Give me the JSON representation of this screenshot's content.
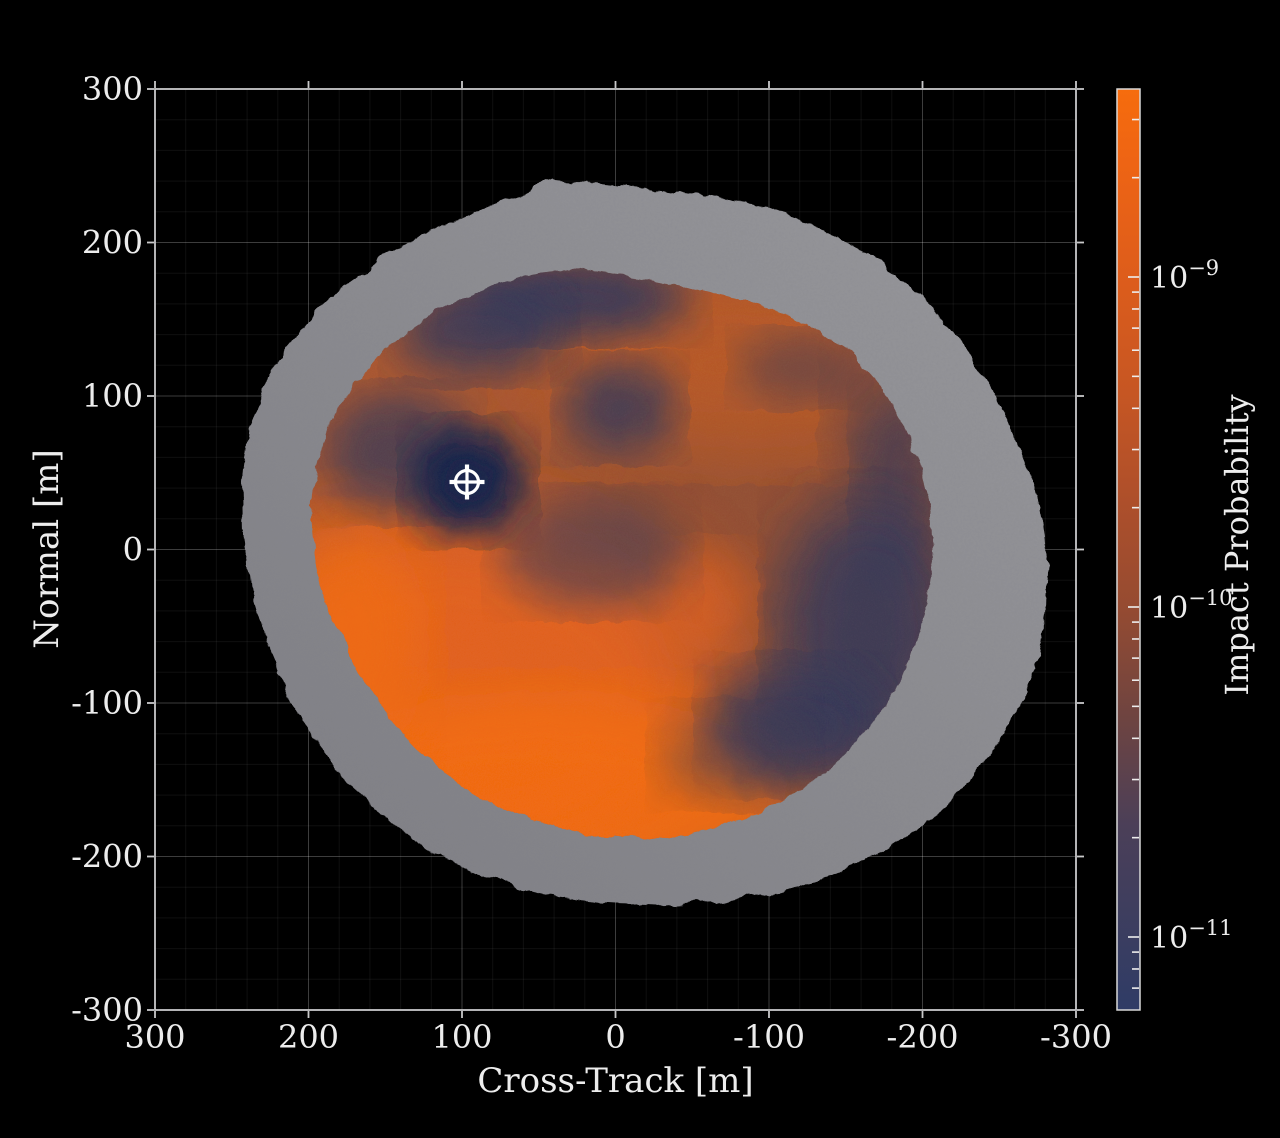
{
  "figure": {
    "background": "#000000",
    "description": "Asteroid surface impact-probability heatmap over a gray asteroid mesh silhouette"
  },
  "axes": {
    "x": {
      "label": "Cross-Track [m]",
      "ticks": [
        "300",
        "200",
        "100",
        "0",
        "-100",
        "-200",
        "-300"
      ]
    },
    "y": {
      "label": "Normal [m]",
      "ticks": [
        "300",
        "200",
        "100",
        "0",
        "-100",
        "-200",
        "-300"
      ]
    }
  },
  "colorbar": {
    "label": "Impact Probability",
    "scale": "log",
    "ticks": [
      {
        "mantissa": "10",
        "exponent": "−9"
      },
      {
        "mantissa": "10",
        "exponent": "−10"
      },
      {
        "mantissa": "10",
        "exponent": "−11"
      }
    ]
  },
  "marker": {
    "symbol": "circled-crosshair",
    "cross_track_m": 97,
    "normal_m": 44
  },
  "colors": {
    "background": "#000000",
    "axis": "#c9c9ca",
    "text": "#ededed",
    "grid-major": "rgba(255,255,255,0.24)",
    "grid-minor": "rgba(255,255,255,0.06)",
    "rock-light": "#9a9a9e",
    "rock-dark": "#7d7d83",
    "heat-base": "#a7542e",
    "heat-orange": "#e4601b",
    "heat-hot": "#f26a10",
    "heat-dim": "#c05a24",
    "heat-brown": "#7c4736",
    "heat-navy": "#2d3558",
    "heat-deep": "#15204a",
    "marker": "#ffffff",
    "cb0": "#f66c0d",
    "cb1": "#ee6414",
    "cb2": "#de5d1b",
    "cb3": "#c65623",
    "cb4": "#ad4f2b",
    "cb5": "#964b31",
    "cb6": "#6f4440",
    "cb7": "#4b3f58",
    "cb8": "#2f3c66"
  },
  "chart_data": {
    "type": "heatmap",
    "title": "",
    "xlabel": "Cross-Track [m]",
    "ylabel": "Normal [m]",
    "xlim": [
      300,
      -300
    ],
    "ylim": [
      -300,
      300
    ],
    "x_ticks": [
      300,
      200,
      100,
      0,
      -100,
      -200,
      -300
    ],
    "y_ticks": [
      300,
      200,
      100,
      0,
      -100,
      -200,
      -300
    ],
    "grid": true,
    "minor_grid_step_m": 20,
    "colorbar": {
      "label": "Impact Probability",
      "scale": "log",
      "tick_values": [
        1e-09,
        1e-10,
        1e-11
      ],
      "approx_range": [
        6e-12,
        4e-09
      ],
      "colors_high_to_low": [
        "#f66c0d",
        "#c65623",
        "#6f4440",
        "#2f3c66"
      ]
    },
    "body": {
      "description": "rocky gray asteroid rim (triangular mesh) seen face-on; interior surface colored by impact probability",
      "extent_cross_track_m": [
        255,
        -285
      ],
      "extent_normal_m": [
        -232,
        245
      ]
    },
    "surface_regions": [
      {
        "location": "south / southwest interior",
        "cross_track_m": [
          250,
          -60
        ],
        "normal_m": [
          -185,
          -20
        ],
        "impact_probability": "~1e-9 (maximum, bright orange)"
      },
      {
        "location": "north and northeast interior",
        "cross_track_m": [
          100,
          -150
        ],
        "normal_m": [
          50,
          170
        ],
        "impact_probability": "~1e-10 (orange-brown)"
      },
      {
        "location": "local minimum at target marker",
        "cross_track_m": 97,
        "normal_m": 44,
        "impact_probability": "<1e-11 (dark navy spot)"
      },
      {
        "location": "eastern interior band",
        "cross_track_m": [
          -120,
          -210
        ],
        "normal_m": [
          -140,
          30
        ],
        "impact_probability": "~2e-11 (dark navy)"
      },
      {
        "location": "northern inner edge band",
        "cross_track_m": [
          120,
          20
        ],
        "normal_m": [
          150,
          175
        ],
        "impact_probability": "~1e-11 (navy band)"
      },
      {
        "location": "central patch",
        "cross_track_m": [
          30,
          -30
        ],
        "normal_m": [
          -20,
          30
        ],
        "impact_probability": "~4e-11 (dusky)"
      }
    ],
    "marker_point": {
      "type": "circled crosshair",
      "cross_track_m": 97,
      "normal_m": 44
    }
  }
}
